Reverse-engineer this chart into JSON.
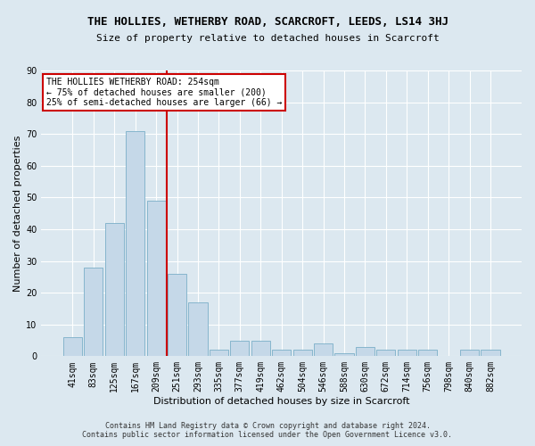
{
  "title": "THE HOLLIES, WETHERBY ROAD, SCARCROFT, LEEDS, LS14 3HJ",
  "subtitle": "Size of property relative to detached houses in Scarcroft",
  "xlabel": "Distribution of detached houses by size in Scarcroft",
  "ylabel": "Number of detached properties",
  "footer_line1": "Contains HM Land Registry data © Crown copyright and database right 2024.",
  "footer_line2": "Contains public sector information licensed under the Open Government Licence v3.0.",
  "bar_labels": [
    "41sqm",
    "83sqm",
    "125sqm",
    "167sqm",
    "209sqm",
    "251sqm",
    "293sqm",
    "335sqm",
    "377sqm",
    "419sqm",
    "462sqm",
    "504sqm",
    "546sqm",
    "588sqm",
    "630sqm",
    "672sqm",
    "714sqm",
    "756sqm",
    "798sqm",
    "840sqm",
    "882sqm"
  ],
  "bar_values": [
    6,
    28,
    42,
    71,
    49,
    26,
    17,
    2,
    5,
    5,
    2,
    2,
    4,
    1,
    3,
    2,
    2,
    2,
    0,
    2,
    2
  ],
  "bar_color": "#c5d8e8",
  "bar_edgecolor": "#7aaec8",
  "vline_x": 4.5,
  "vline_color": "#cc0000",
  "annotation_line1": "THE HOLLIES WETHERBY ROAD: 254sqm",
  "annotation_line2": "← 75% of detached houses are smaller (200)",
  "annotation_line3": "25% of semi-detached houses are larger (66) →",
  "annotation_box_facecolor": "#ffffff",
  "annotation_box_edgecolor": "#cc0000",
  "ylim": [
    0,
    90
  ],
  "yticks": [
    0,
    10,
    20,
    30,
    40,
    50,
    60,
    70,
    80,
    90
  ],
  "bg_color": "#dce8f0",
  "grid_color": "#ffffff",
  "title_fontsize": 9,
  "subtitle_fontsize": 8,
  "ylabel_fontsize": 8,
  "xlabel_fontsize": 8,
  "tick_labelsize": 7,
  "footer_fontsize": 6,
  "annot_fontsize": 7
}
